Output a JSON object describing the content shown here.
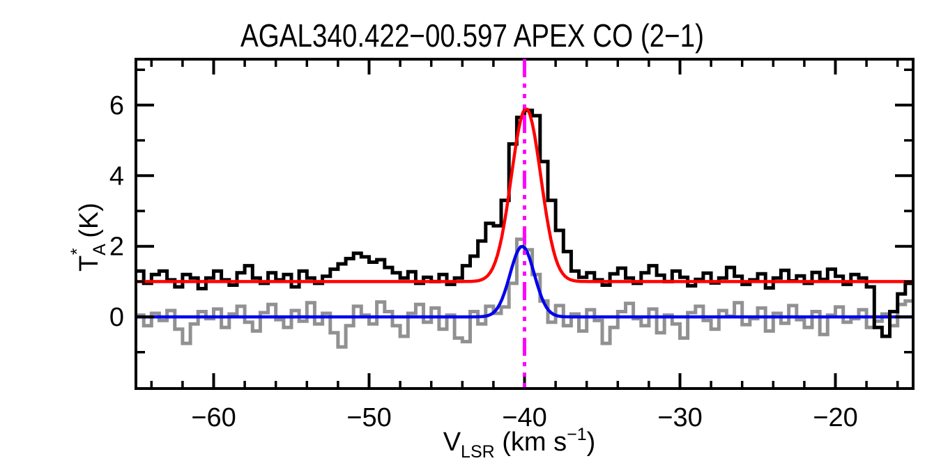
{
  "figure": {
    "background": "#ffffff"
  },
  "chart_data": {
    "type": "line",
    "title": "AGAL340.422−00.597  APEX CO (2−1)",
    "xlabel_parts": {
      "main": "V",
      "sub": "LSR",
      "mid": " (km s",
      "sup": "−1",
      "end": ")"
    },
    "ylabel_parts": {
      "main": "T",
      "sub": "A",
      "sup": "*",
      "unit": " (K)"
    },
    "xlabel_plain": "VLSR (km s-1)",
    "ylabel_plain": "TA* (K)",
    "xlim": [
      -65,
      -15
    ],
    "ylim": [
      -2.03,
      7.3
    ],
    "grid": "off",
    "legend": "none",
    "x_ticks": [
      {
        "v": -60,
        "label": "−60"
      },
      {
        "v": -50,
        "label": "−50"
      },
      {
        "v": -40,
        "label": "−40"
      },
      {
        "v": -30,
        "label": "−30"
      },
      {
        "v": -20,
        "label": "−20"
      }
    ],
    "x_minor_ticks": [
      -64,
      -62,
      -58,
      -56,
      -54,
      -52,
      -48,
      -46,
      -44,
      -42,
      -38,
      -36,
      -34,
      -32,
      -28,
      -26,
      -24,
      -22,
      -18,
      -16
    ],
    "y_ticks": [
      {
        "v": 0,
        "label": "0"
      },
      {
        "v": 2,
        "label": "2"
      },
      {
        "v": 4,
        "label": "4"
      },
      {
        "v": 6,
        "label": "6"
      }
    ],
    "y_minor_ticks": [
      -1,
      1,
      3,
      5,
      7
    ],
    "colors": {
      "observed_spectrum": "#000000",
      "offset_spectrum": "#919191",
      "gaussian_fit_main": "#ff0000",
      "gaussian_fit_offset": "#0000ee",
      "vlsr_marker": "#ff00ff",
      "frame": "#000000"
    },
    "series": [
      {
        "name": "observed-spectrum",
        "style": "histogram",
        "color_key": "observed_spectrum",
        "v_start": -65.0,
        "dv": 0.5,
        "values": [
          1.3,
          0.95,
          1.2,
          1.3,
          1.05,
          0.85,
          1.2,
          1.1,
          0.8,
          1.1,
          1.3,
          1.05,
          0.9,
          1.25,
          1.45,
          1.1,
          0.95,
          1.25,
          1.05,
          1.2,
          0.85,
          1.3,
          1.1,
          0.95,
          1.15,
          1.35,
          1.5,
          1.65,
          1.8,
          1.7,
          1.55,
          1.62,
          1.4,
          1.25,
          1.1,
          1.28,
          0.95,
          1.12,
          1.0,
          1.2,
          0.92,
          1.1,
          1.45,
          1.72,
          2.15,
          2.65,
          2.58,
          3.3,
          4.9,
          5.65,
          5.85,
          5.7,
          4.4,
          3.3,
          2.45,
          1.85,
          1.3,
          1.12,
          1.25,
          1.05,
          0.9,
          1.22,
          1.38,
          1.1,
          0.95,
          1.25,
          1.45,
          1.18,
          1.0,
          1.3,
          1.12,
          0.88,
          1.06,
          1.24,
          0.96,
          1.1,
          1.4,
          1.15,
          0.92,
          1.05,
          1.22,
          0.82,
          1.1,
          1.32,
          1.02,
          1.16,
          0.95,
          1.26,
          1.06,
          1.35,
          1.15,
          0.92,
          1.2,
          1.1,
          0.85,
          -0.3,
          -0.55,
          0.15,
          0.65,
          0.95
        ]
      },
      {
        "name": "offset-spectrum",
        "style": "histogram",
        "color_key": "offset_spectrum",
        "v_start": -65.0,
        "dv": 0.5,
        "values": [
          0.05,
          -0.25,
          0.1,
          -0.1,
          0.18,
          -0.35,
          -0.75,
          -0.2,
          0.15,
          -0.05,
          0.22,
          -0.3,
          0.08,
          0.3,
          -0.15,
          -0.4,
          0.12,
          0.35,
          -0.08,
          -0.3,
          0.18,
          -0.12,
          0.4,
          -0.2,
          0.1,
          -0.45,
          -0.85,
          -0.25,
          0.3,
          0.05,
          -0.2,
          0.42,
          0.15,
          -0.25,
          -0.55,
          0.1,
          0.35,
          -0.15,
          0.25,
          -0.35,
          0.05,
          -0.6,
          -0.7,
          0.15,
          -0.2,
          0.3,
          0.1,
          0.28,
          0.95,
          2.2,
          1.9,
          1.2,
          0.45,
          -0.15,
          0.32,
          -0.25,
          0.08,
          -0.4,
          0.2,
          -0.1,
          -0.75,
          -0.3,
          0.15,
          0.38,
          -0.05,
          -0.25,
          0.22,
          -0.45,
          0.05,
          -0.2,
          -0.6,
          0.12,
          0.3,
          -0.1,
          -0.35,
          0.18,
          0.02,
          0.4,
          -0.22,
          -0.05,
          0.25,
          -0.4,
          0.1,
          -0.18,
          0.32,
          -0.08,
          -0.3,
          0.15,
          -0.5,
          0.05,
          0.28,
          -0.15,
          -0.05,
          0.2,
          -0.3,
          -0.12,
          0.08,
          -0.25,
          0.35,
          0.45
        ]
      },
      {
        "name": "gaussian-fit-main",
        "style": "gaussian",
        "color_key": "gaussian_fit_main",
        "baseline": 1.0,
        "amplitude": 4.9,
        "center": -39.9,
        "sigma": 0.95
      },
      {
        "name": "gaussian-fit-offset",
        "style": "gaussian",
        "color_key": "gaussian_fit_offset",
        "baseline": 0.0,
        "amplitude": 2.0,
        "center": -40.15,
        "sigma": 0.78
      }
    ],
    "vlsr_marker": {
      "v": -40.0,
      "style": "dash-dot-dot-dot"
    }
  }
}
